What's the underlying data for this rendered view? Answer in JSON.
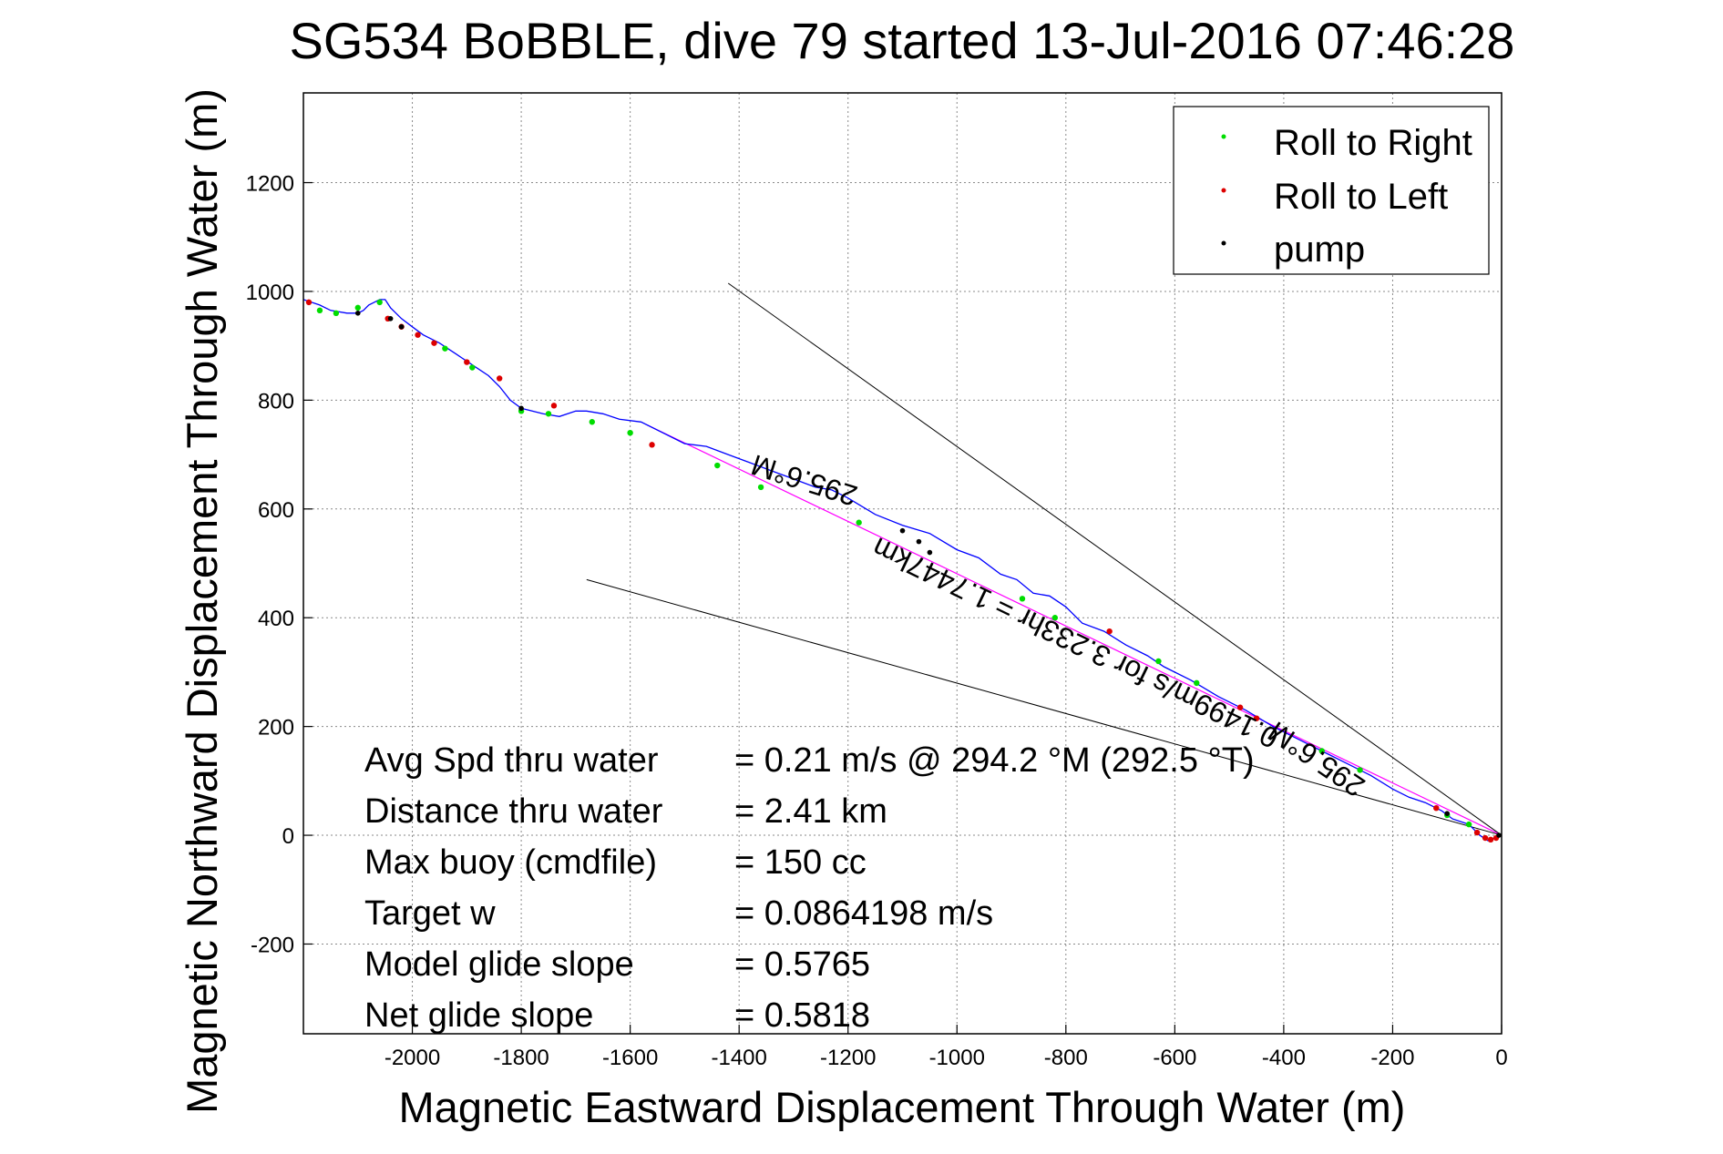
{
  "chart_data": {
    "type": "line",
    "title": "SG534 BoBBLE, dive 79 started 13-Jul-2016 07:46:28",
    "xlabel": "Magnetic Eastward Displacement Through Water (m)",
    "ylabel": "Magnetic Northward Displacement Through Water (m)",
    "xlim": [
      -2200,
      0
    ],
    "ylim": [
      -365,
      1365
    ],
    "x_ticks": [
      -2000,
      -1800,
      -1600,
      -1400,
      -1200,
      -1000,
      -800,
      -600,
      -400,
      -200,
      0
    ],
    "y_ticks": [
      -200,
      0,
      200,
      400,
      600,
      800,
      1000,
      1200
    ],
    "grid": true,
    "legend_position": "top-right",
    "legend": [
      {
        "label": "Roll to Right",
        "color": "#00dd00"
      },
      {
        "label": "Roll to Left",
        "color": "#dd0000"
      },
      {
        "label": "pump",
        "color": "#000000"
      }
    ],
    "track": {
      "color": "#0000ff",
      "x": [
        0,
        -25,
        -40,
        -60,
        -90,
        -110,
        -140,
        -170,
        -200,
        -240,
        -280,
        -320,
        -370,
        -420,
        -470,
        -520,
        -570,
        -620,
        -650,
        -690,
        -730,
        -770,
        -800,
        -830,
        -860,
        -890,
        -920,
        -960,
        -1000,
        -1050,
        -1100,
        -1150,
        -1200,
        -1230,
        -1260,
        -1300,
        -1340,
        -1380,
        -1420,
        -1460,
        -1500,
        -1540,
        -1580,
        -1620,
        -1650,
        -1680,
        -1700,
        -1730,
        -1760,
        -1800,
        -1820,
        -1840,
        -1860,
        -1890,
        -1920,
        -1950,
        -1980,
        -2000,
        -2020,
        -2040,
        -2050,
        -2060,
        -2070,
        -2080,
        -2090,
        -2100,
        -2120,
        -2150,
        -2170,
        -2200
      ],
      "y": [
        0,
        -10,
        0,
        20,
        30,
        45,
        60,
        70,
        85,
        110,
        130,
        150,
        175,
        200,
        230,
        255,
        285,
        310,
        330,
        350,
        375,
        390,
        420,
        440,
        445,
        470,
        480,
        510,
        525,
        555,
        570,
        590,
        620,
        635,
        640,
        655,
        670,
        685,
        700,
        715,
        720,
        740,
        760,
        765,
        775,
        780,
        780,
        770,
        775,
        785,
        800,
        825,
        845,
        865,
        885,
        905,
        920,
        935,
        950,
        970,
        985,
        985,
        980,
        975,
        965,
        960,
        960,
        965,
        975,
        985
      ]
    },
    "roll_right": {
      "x": [
        -60,
        -100,
        -260,
        -330,
        -560,
        -630,
        -820,
        -880,
        -1180,
        -1360,
        -1440,
        -1600,
        -1670,
        -1750,
        -1800,
        -1890,
        -1940,
        -2060,
        -2100,
        -2140,
        -2170
      ],
      "y": [
        20,
        37,
        120,
        155,
        280,
        320,
        400,
        435,
        575,
        640,
        680,
        740,
        760,
        775,
        780,
        860,
        895,
        980,
        970,
        960,
        965
      ]
    },
    "roll_left": {
      "x": [
        -10,
        -20,
        -30,
        -45,
        -120,
        -450,
        -480,
        -720,
        -1560,
        -1740,
        -1840,
        -1900,
        -1960,
        -1990,
        -2020,
        -2045,
        -2190
      ],
      "y": [
        -5,
        -8,
        -5,
        5,
        50,
        215,
        235,
        375,
        718,
        790,
        840,
        870,
        905,
        920,
        935,
        950,
        980
      ]
    },
    "pump": {
      "x": [
        -5,
        -100,
        -1100,
        -1070,
        -1050,
        -1800,
        -2020,
        -2040,
        -2100
      ],
      "y": [
        0,
        40,
        560,
        540,
        520,
        785,
        935,
        950,
        960
      ]
    },
    "heading_line": {
      "color": "#ff00ff",
      "x": [
        0,
        -1570
      ],
      "y": [
        0,
        755
      ]
    },
    "cone_upper": {
      "color": "#000000",
      "x": [
        0,
        -1420
      ],
      "y": [
        0,
        1015
      ]
    },
    "cone_lower": {
      "color": "#000000",
      "x": [
        0,
        -1680
      ],
      "y": [
        0,
        470
      ]
    },
    "annotations": [
      {
        "text": "295.6°M",
        "x": -1275,
        "y": 670,
        "angle_deg": 197.7
      },
      {
        "text": "0.1499m/s for 3.233hr = 1.7447km",
        "x": -775,
        "y": 370,
        "angle_deg": 205.8
      },
      {
        "text": "295.6°M",
        "x": -330,
        "y": 155,
        "angle_deg": 214.2
      }
    ],
    "stats": [
      {
        "label": "Avg Spd thru water",
        "value": "=  0.21 m/s @ 294.2 °M (292.5 °T)"
      },
      {
        "label": "Distance thru water",
        "value": "=  2.41 km"
      },
      {
        "label": "Max buoy (cmdfile)",
        "value": "= 150 cc"
      },
      {
        "label": "Target w",
        "value": "= 0.0864198 m/s"
      },
      {
        "label": "Model glide slope",
        "value": "= 0.5765"
      },
      {
        "label": "Net glide slope",
        "value": "= 0.5818"
      }
    ]
  }
}
